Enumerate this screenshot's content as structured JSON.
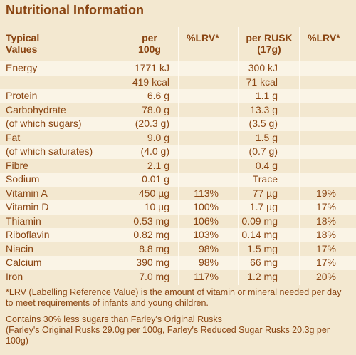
{
  "title": "Nutritional Information",
  "header": {
    "label": "Typical Values",
    "per100g": "per 100g",
    "lrv100g": "%LRV*",
    "perRusk": "per RUSK (17g)",
    "lrvRusk": "%LRV*"
  },
  "rows": [
    {
      "label": "Energy",
      "per100g": "1771 kJ",
      "perRusk": "300 kJ"
    },
    {
      "per100g": "419 kcal",
      "perRusk": "71 kcal"
    },
    {
      "label": "Protein",
      "per100g": "6.6 g",
      "perRusk": "1.1 g"
    },
    {
      "label": "Carbohydrate",
      "per100g": "78.0 g",
      "perRusk": "13.3 g"
    },
    {
      "label": "(of which sugars)",
      "per100g": "(20.3 g)",
      "perRusk": "(3.5 g)"
    },
    {
      "label": "Fat",
      "per100g": "9.0 g",
      "perRusk": "1.5 g"
    },
    {
      "label": "(of which saturates)",
      "per100g": "(4.0 g)",
      "perRusk": "(0.7 g)"
    },
    {
      "label": "Fibre",
      "per100g": "2.1 g",
      "perRusk": "0.4 g"
    },
    {
      "label": "Sodium",
      "per100g": "0.01 g",
      "perRusk": "Trace"
    },
    {
      "label": "Vitamin A",
      "per100g": "450 µg",
      "lrv100g": "113%",
      "perRusk": "77 µg",
      "lrvRusk": "19%"
    },
    {
      "label": "Vitamin D",
      "per100g": "10 µg",
      "lrv100g": "100%",
      "perRusk": "1.7 µg",
      "lrvRusk": "17%"
    },
    {
      "label": "Thiamin",
      "per100g": "0.53 mg",
      "lrv100g": "106%",
      "perRusk": "0.09 mg",
      "lrvRusk": "18%"
    },
    {
      "label": "Riboflavin",
      "per100g": "0.82 mg",
      "lrv100g": "103%",
      "perRusk": "0.14 mg",
      "lrvRusk": "18%"
    },
    {
      "label": "Niacin",
      "per100g": "8.8 mg",
      "lrv100g": "98%",
      "perRusk": "1.5 mg",
      "lrvRusk": "17%"
    },
    {
      "label": "Calcium",
      "per100g": "390 mg",
      "lrv100g": "98%",
      "perRusk": "66 mg",
      "lrvRusk": "17%"
    },
    {
      "label": "Iron",
      "per100g": "7.0 mg",
      "lrv100g": "117%",
      "perRusk": "1.2 mg",
      "lrvRusk": "20%"
    }
  ],
  "footnote": "*LRV (Labelling Reference Value) is the amount of vitamin or mineral needed per day to meet requirements of infants and young children.",
  "claim": "Contains 30% less sugars than Farley's Original Rusks",
  "claim_detail": "(Farley's Original Rusks 29.0g per 100g, Farley's Reduced Sugar Rusks 20.3g per 100g)"
}
